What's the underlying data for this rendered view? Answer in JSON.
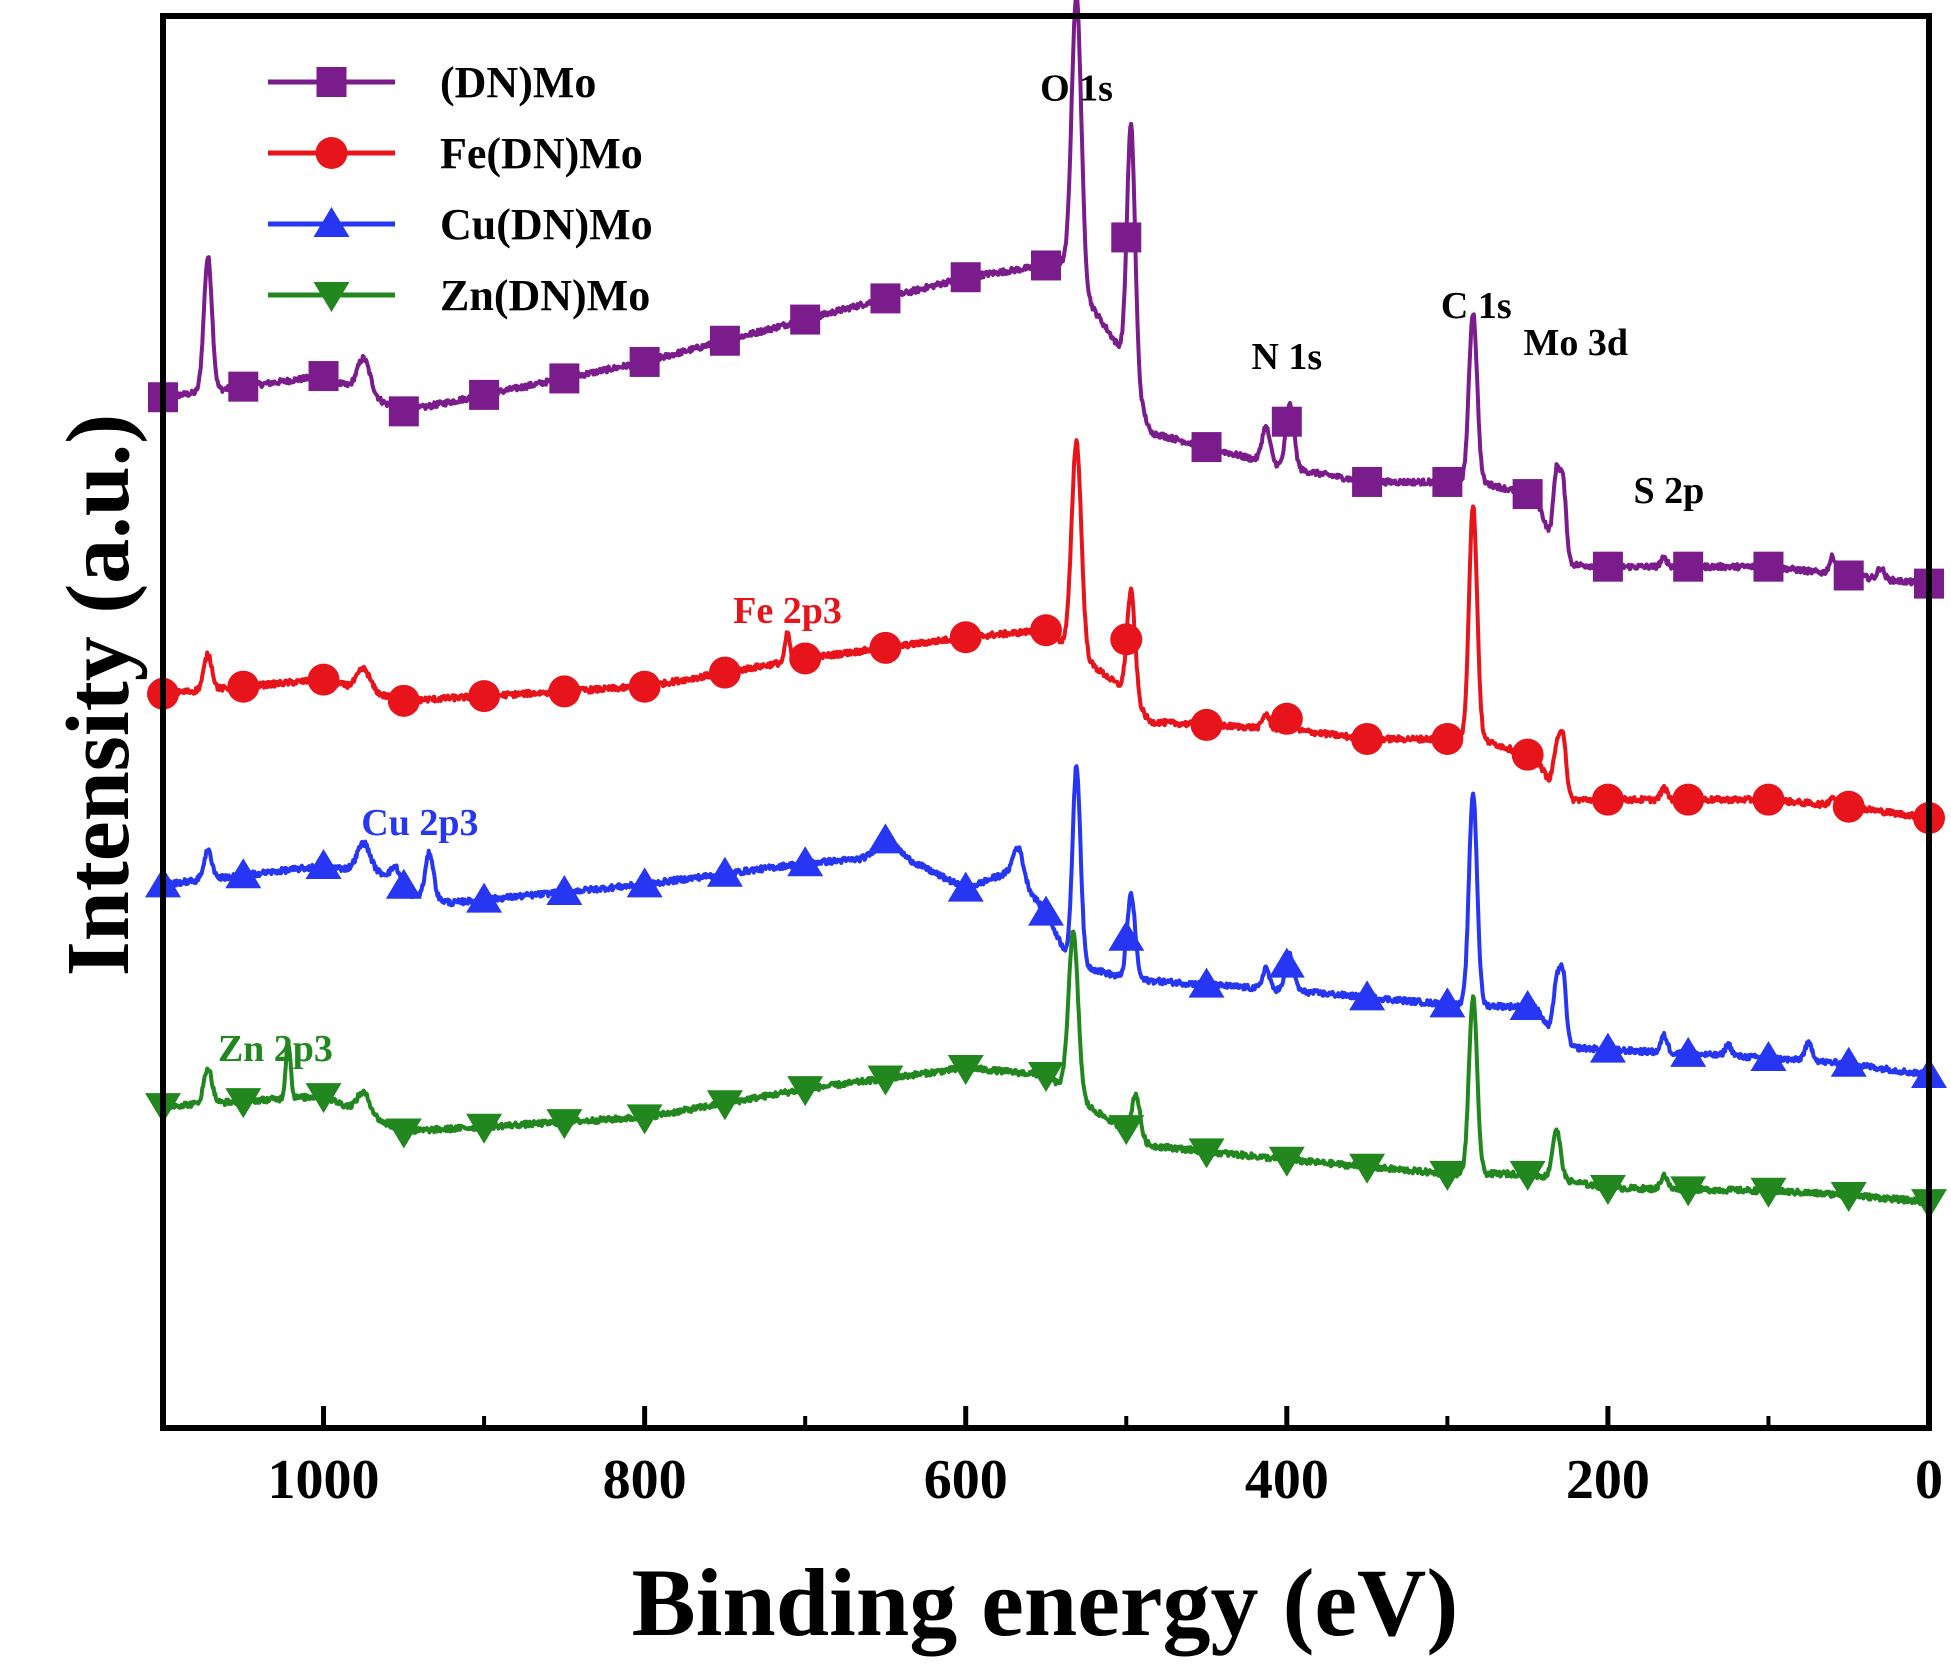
{
  "chart_data": {
    "type": "line",
    "title": "",
    "xlabel": "Binding energy (eV)",
    "ylabel": "Intensity (a.u.)",
    "xlim": [
      1100,
      0
    ],
    "ylim": [
      0,
      1000
    ],
    "x_ticks": [
      1000,
      800,
      600,
      400,
      200,
      0
    ],
    "x_tick_labels": [
      "1000",
      "800",
      "600",
      "400",
      "200",
      "0"
    ],
    "y_ticks_shown": false,
    "grid": false,
    "legend_position": "top-left",
    "series": [
      {
        "name": "(DN)Mo",
        "color": "#7B1C8C",
        "marker": "square",
        "marker_every_ev": 50,
        "baseline": [
          [
            1100,
            730
          ],
          [
            1000,
            745
          ],
          [
            950,
            720
          ],
          [
            800,
            755
          ],
          [
            700,
            785
          ],
          [
            600,
            815
          ],
          [
            540,
            825
          ],
          [
            500,
            758
          ],
          [
            485,
            705
          ],
          [
            400,
            680
          ],
          [
            350,
            670
          ],
          [
            280,
            670
          ],
          [
            245,
            660
          ],
          [
            230,
            612
          ],
          [
            200,
            610
          ],
          [
            100,
            610
          ],
          [
            20,
            600
          ],
          [
            0,
            598
          ]
        ],
        "peaks": [
          [
            1072,
            95,
            2.5
          ],
          [
            975,
            25,
            4
          ],
          [
            531,
            205,
            3
          ],
          [
            497,
            175,
            2.5
          ],
          [
            413,
            25,
            2.5
          ],
          [
            398,
            45,
            2.5
          ],
          [
            284,
            120,
            2.5
          ],
          [
            232,
            55,
            2
          ],
          [
            228,
            55,
            2
          ],
          [
            165,
            6,
            2
          ],
          [
            60,
            12,
            2
          ],
          [
            30,
            8,
            2
          ]
        ]
      },
      {
        "name": "Fe(DN)Mo",
        "color": "#E8141B",
        "marker": "circle",
        "marker_every_ev": 50,
        "baseline": [
          [
            1100,
            520
          ],
          [
            1000,
            530
          ],
          [
            950,
            515
          ],
          [
            800,
            525
          ],
          [
            700,
            545
          ],
          [
            600,
            560
          ],
          [
            550,
            565
          ],
          [
            500,
            522
          ],
          [
            485,
            500
          ],
          [
            400,
            495
          ],
          [
            350,
            488
          ],
          [
            280,
            488
          ],
          [
            245,
            475
          ],
          [
            230,
            445
          ],
          [
            200,
            445
          ],
          [
            100,
            445
          ],
          [
            50,
            440
          ],
          [
            0,
            432
          ]
        ],
        "peaks": [
          [
            1072,
            25,
            2.5
          ],
          [
            975,
            15,
            4
          ],
          [
            711,
            20,
            1.5
          ],
          [
            531,
            150,
            3
          ],
          [
            497,
            75,
            2.5
          ],
          [
            413,
            10,
            2
          ],
          [
            398,
            12,
            2
          ],
          [
            284,
            165,
            2.5
          ],
          [
            232,
            30,
            2
          ],
          [
            228,
            45,
            2
          ],
          [
            165,
            8,
            2
          ],
          [
            60,
            6,
            2
          ]
        ]
      },
      {
        "name": "Cu(DN)Mo",
        "color": "#2636F2",
        "marker": "triangle-up",
        "marker_every_ev": 50,
        "baseline": [
          [
            1100,
            385
          ],
          [
            1000,
            398
          ],
          [
            960,
            392
          ],
          [
            945,
            378
          ],
          [
            920,
            372
          ],
          [
            800,
            385
          ],
          [
            700,
            400
          ],
          [
            640,
            405
          ],
          [
            600,
            382
          ],
          [
            570,
            395
          ],
          [
            550,
            365
          ],
          [
            535,
            330
          ],
          [
            500,
            318
          ],
          [
            400,
            310
          ],
          [
            300,
            300
          ],
          [
            245,
            298
          ],
          [
            230,
            270
          ],
          [
            200,
            268
          ],
          [
            100,
            262
          ],
          [
            50,
            258
          ],
          [
            0,
            250
          ]
        ],
        "peaks": [
          [
            1072,
            20,
            2.5
          ],
          [
            975,
            20,
            4
          ],
          [
            955,
            10,
            2.5
          ],
          [
            934,
            32,
            2.5
          ],
          [
            650,
            12,
            6
          ],
          [
            567,
            20,
            3
          ],
          [
            531,
            140,
            2.5
          ],
          [
            497,
            60,
            2.5
          ],
          [
            413,
            15,
            2
          ],
          [
            398,
            25,
            2.5
          ],
          [
            284,
            150,
            2.5
          ],
          [
            232,
            40,
            2
          ],
          [
            228,
            50,
            2
          ],
          [
            165,
            12,
            2
          ],
          [
            125,
            8,
            2
          ],
          [
            75,
            12,
            2.5
          ]
        ]
      },
      {
        "name": "Zn(DN)Mo",
        "color": "#22871F",
        "marker": "triangle-down",
        "marker_every_ev": 50,
        "baseline": [
          [
            1100,
            228
          ],
          [
            1000,
            235
          ],
          [
            950,
            210
          ],
          [
            800,
            220
          ],
          [
            700,
            240
          ],
          [
            600,
            255
          ],
          [
            550,
            250
          ],
          [
            520,
            225
          ],
          [
            485,
            200
          ],
          [
            400,
            190
          ],
          [
            300,
            180
          ],
          [
            250,
            180
          ],
          [
            200,
            170
          ],
          [
            100,
            168
          ],
          [
            50,
            165
          ],
          [
            0,
            160
          ]
        ],
        "peaks": [
          [
            1072,
            25,
            2.5
          ],
          [
            1022,
            40,
            1.5
          ],
          [
            975,
            15,
            4
          ],
          [
            533,
            115,
            3
          ],
          [
            494,
            30,
            2.5
          ],
          [
            284,
            125,
            2.5
          ],
          [
            232,
            35,
            2.5
          ],
          [
            165,
            10,
            2
          ]
        ]
      }
    ],
    "annotations": [
      {
        "text": "O 1s",
        "x": 531,
        "y": 940,
        "color": "#000000"
      },
      {
        "text": "N 1s",
        "x": 400,
        "y": 750,
        "color": "#000000"
      },
      {
        "text": "C 1s",
        "x": 282,
        "y": 786,
        "color": "#000000"
      },
      {
        "text": "Mo 3d",
        "x": 220,
        "y": 760,
        "color": "#000000"
      },
      {
        "text": "S 2p",
        "x": 162,
        "y": 655,
        "color": "#000000"
      },
      {
        "text": "Fe 2p3",
        "x": 711,
        "y": 570,
        "color": "#E8141B"
      },
      {
        "text": "Cu 2p3",
        "x": 940,
        "y": 420,
        "color": "#2636F2"
      },
      {
        "text": "Zn 2p3",
        "x": 1030,
        "y": 260,
        "color": "#22871F"
      }
    ]
  }
}
